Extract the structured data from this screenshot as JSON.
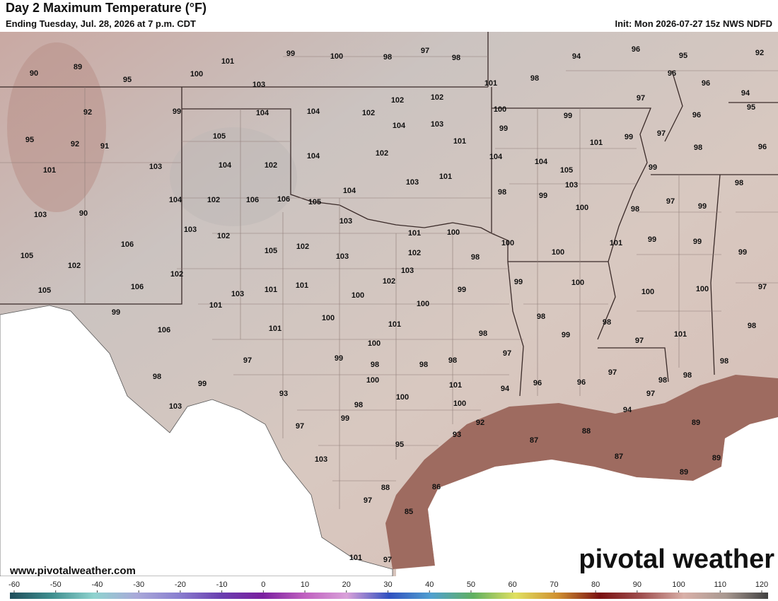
{
  "header": {
    "title": "Day 2 Maximum Temperature (°F)",
    "subtitle": "Ending Tuesday, Jul. 28, 2026 at 7 p.m. CDT",
    "init": "Init: Mon 2026-07-27 15z NWS NDFD"
  },
  "branding": {
    "url": "www.pivotalweather.com",
    "logo": "pivotal weather"
  },
  "temperature_labels": [
    90,
    89,
    95,
    100,
    101,
    99,
    100,
    98,
    97,
    98,
    94,
    96,
    95,
    92,
    103,
    101,
    98,
    96,
    96,
    94,
    99,
    92,
    104,
    104,
    102,
    102,
    102,
    100,
    97,
    95,
    99,
    96,
    104,
    103,
    99,
    97,
    95,
    92,
    91,
    105,
    101,
    101,
    99,
    98,
    96,
    102,
    104,
    104,
    101,
    103,
    104,
    102,
    104,
    105,
    99,
    101,
    103,
    103,
    98,
    104,
    98,
    99,
    97,
    104,
    102,
    106,
    106,
    105,
    100,
    98,
    99,
    103,
    90,
    103,
    101,
    100,
    103,
    102,
    106,
    100,
    101,
    99,
    99,
    102,
    105,
    102,
    98,
    100,
    99,
    105,
    102,
    103,
    103,
    102,
    102,
    99,
    100,
    105,
    106,
    103,
    101,
    101,
    100,
    99,
    100,
    100,
    97,
    101,
    100,
    99,
    100,
    98,
    106,
    101,
    101,
    98,
    98,
    98,
    99,
    101,
    97,
    100,
    97,
    97,
    99,
    98,
    98,
    98,
    98,
    97,
    98,
    100,
    98,
    98,
    99,
    101,
    96,
    96,
    94,
    93,
    97,
    100,
    103,
    98,
    100,
    94,
    99,
    92,
    89,
    88,
    97,
    93,
    87,
    95,
    103,
    87,
    89,
    89,
    86,
    88,
    97,
    85,
    101,
    97
  ],
  "colorbar": {
    "ticks": [
      -60,
      -50,
      -40,
      -30,
      -20,
      -10,
      0,
      10,
      20,
      30,
      40,
      50,
      60,
      70,
      80,
      90,
      100,
      110,
      120
    ],
    "lim": [
      -60,
      120
    ],
    "colors": [
      "#1f4e5c",
      "#3f8f8f",
      "#8fd3cf",
      "#a9a9d9",
      "#8a7fd0",
      "#6a3fb0",
      "#7a1f9f",
      "#c060c0",
      "#d9a0d9",
      "#3050c0",
      "#50a0d0",
      "#60b060",
      "#e0e060",
      "#d09030",
      "#7a1010",
      "#a05050",
      "#d9b0a8",
      "#a89890",
      "#404040"
    ]
  }
}
